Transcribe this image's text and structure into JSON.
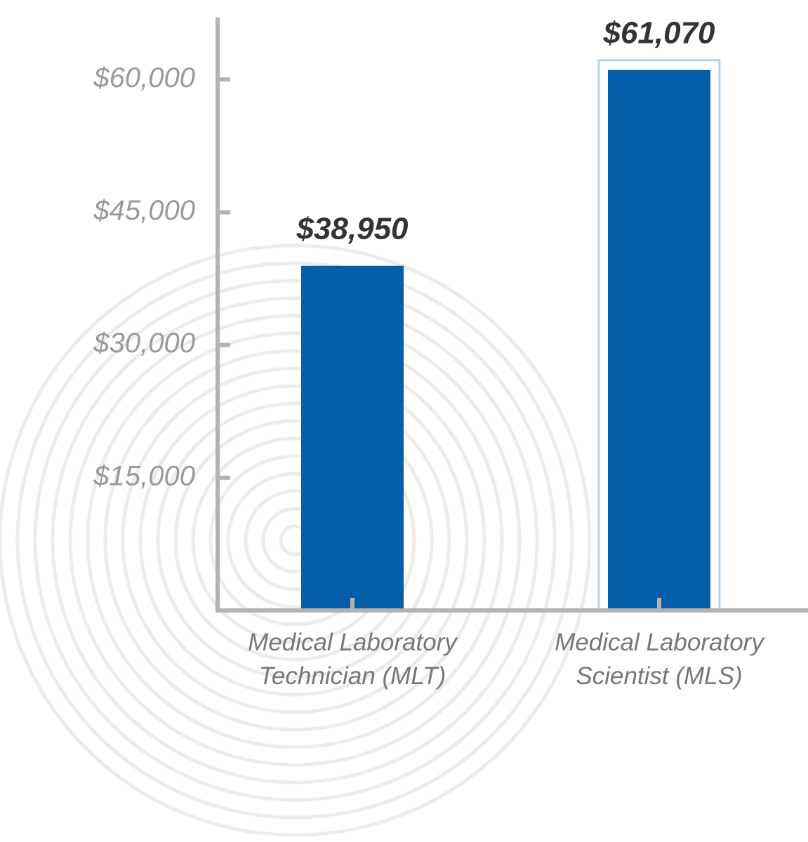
{
  "chart_data": {
    "type": "bar",
    "categories": [
      "Medical Laboratory Technician (MLT)",
      "Medical Laboratory Scientist (MLS)"
    ],
    "values": [
      38950,
      61070
    ],
    "value_labels": [
      "$38,950",
      "$61,070"
    ],
    "color": "#055ea8",
    "highlight_color": "#b7d3ea",
    "highlight_index": 1,
    "ylim": [
      0,
      67000
    ],
    "yticks": [
      {
        "value": 15000,
        "label": "$15,000"
      },
      {
        "value": 30000,
        "label": "$30,000"
      },
      {
        "value": 45000,
        "label": "$45,000"
      },
      {
        "value": 60000,
        "label": "$60,000"
      }
    ]
  }
}
